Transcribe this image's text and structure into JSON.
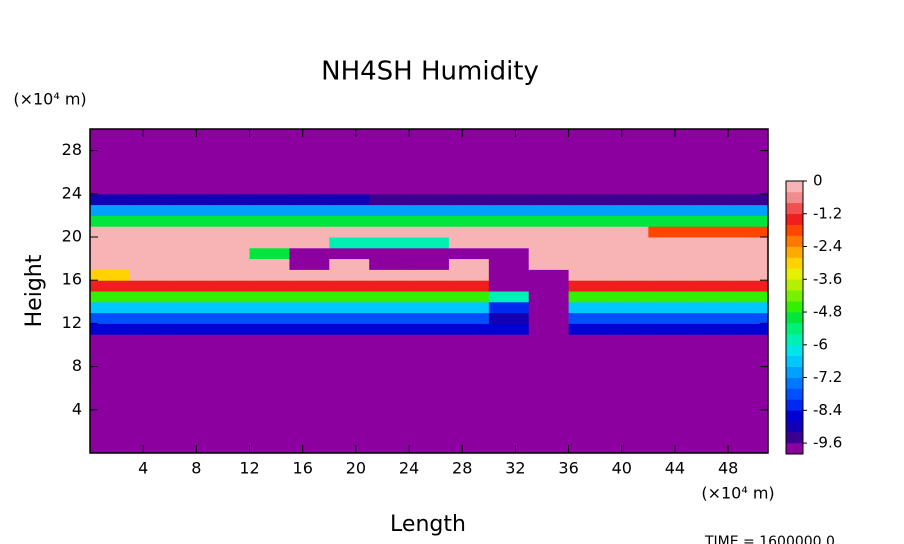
{
  "chart_data": {
    "type": "heatmap",
    "title": "NH4SH Humidity",
    "x_label": "Length",
    "y_label": "Height",
    "x_unit": "(×10⁴ m)",
    "y_unit": "(×10⁴ m)",
    "footer": "TIME = 1600000.0",
    "xlim": [
      0,
      51
    ],
    "ylim": [
      0,
      30
    ],
    "xticks": [
      4,
      8,
      12,
      16,
      20,
      24,
      28,
      32,
      36,
      40,
      44,
      48
    ],
    "yticks": [
      4,
      8,
      12,
      16,
      20,
      24,
      28
    ],
    "xbins": [
      0,
      3,
      6,
      9,
      12,
      15,
      18,
      21,
      24,
      27,
      30,
      33,
      36,
      39,
      42,
      45,
      48,
      51
    ],
    "ybins": [
      0,
      11,
      12,
      13,
      14,
      15,
      16,
      17,
      18,
      19,
      20,
      21,
      22,
      23,
      24,
      30
    ],
    "z": [
      [
        -9.8,
        -9.8,
        -9.8,
        -9.8,
        -9.8,
        -9.8,
        -9.8,
        -9.8,
        -9.8,
        -9.8,
        -9.8,
        -9.8,
        -9.8,
        -9.8,
        -9.8,
        -9.8,
        -9.8
      ],
      [
        -8.6,
        -8.6,
        -8.6,
        -8.6,
        -8.6,
        -8.6,
        -8.6,
        -8.6,
        -8.6,
        -8.6,
        -8.6,
        -9.8,
        -8.6,
        -8.6,
        -8.6,
        -8.6,
        -8.6
      ],
      [
        -7.8,
        -7.8,
        -7.8,
        -7.8,
        -7.8,
        -7.8,
        -7.8,
        -7.8,
        -7.8,
        -7.8,
        -9,
        -9.8,
        -7.8,
        -7.8,
        -7.8,
        -7.8,
        -7.8
      ],
      [
        -6.6,
        -6.6,
        -6.6,
        -6.6,
        -6.6,
        -6.6,
        -6.6,
        -6.6,
        -6.6,
        -6.6,
        -8.2,
        -9.8,
        -6.6,
        -6.6,
        -6.6,
        -6.6,
        -6.6
      ],
      [
        -4.4,
        -4.4,
        -4.4,
        -4.4,
        -4.4,
        -4.4,
        -4.4,
        -4.4,
        -4.4,
        -4.4,
        -6,
        -9.8,
        -4.4,
        -4.4,
        -4.4,
        -4.4,
        -4.4
      ],
      [
        -1.5,
        -1.5,
        -1.5,
        -1.5,
        -1.5,
        -1.5,
        -1.5,
        -1.5,
        -1.5,
        -1.5,
        -9.8,
        -9.8,
        -1.5,
        -1.5,
        -1.5,
        -1.5,
        -1.5
      ],
      [
        -3,
        -0.2,
        -0.2,
        -0.2,
        -0.2,
        -0.2,
        -0.2,
        -0.2,
        -0.2,
        -0.2,
        -9.8,
        -9.8,
        -0.2,
        -0.2,
        -0.2,
        -0.2,
        -0.2
      ],
      [
        -0.2,
        -0.2,
        -0.2,
        -0.2,
        -0.2,
        -9.8,
        -0.2,
        -9.8,
        -9.8,
        -0.2,
        -9.8,
        -0.2,
        -0.2,
        -0.2,
        -0.2,
        -0.2,
        -0.2
      ],
      [
        -0.2,
        -0.2,
        -0.2,
        -0.2,
        -5,
        -9.8,
        -9.8,
        -9.8,
        -9.8,
        -9.8,
        -9.8,
        -0.2,
        -0.2,
        -0.2,
        -0.2,
        -0.2,
        -0.2
      ],
      [
        -0.2,
        -0.2,
        -0.2,
        -0.2,
        -0.2,
        -0.2,
        -6,
        -6,
        -6,
        -0.2,
        -0.2,
        -0.2,
        -0.2,
        -0.2,
        -0.2,
        -0.2,
        -0.2
      ],
      [
        -0.2,
        -0.2,
        -0.2,
        -0.2,
        -0.2,
        -0.2,
        -0.2,
        -0.2,
        -0.2,
        -0.2,
        -0.2,
        -0.2,
        -0.2,
        -0.2,
        -2,
        -2,
        -2
      ],
      [
        -5,
        -5,
        -5,
        -5,
        -5,
        -5,
        -5,
        -5,
        -5,
        -5,
        -5,
        -5,
        -5,
        -5,
        -5,
        -5,
        -5
      ],
      [
        -7,
        -7,
        -7,
        -7,
        -7,
        -7,
        -7,
        -7,
        -7,
        -7,
        -7,
        -7,
        -7,
        -7,
        -7,
        -7,
        -7
      ],
      [
        -8.8,
        -8.8,
        -8.8,
        -8.8,
        -8.8,
        -8.8,
        -8.8,
        -9.4,
        -9.4,
        -9.4,
        -9.4,
        -9.4,
        -9.4,
        -9.4,
        -9.4,
        -9.4,
        -9.4
      ],
      [
        -9.8,
        -9.8,
        -9.8,
        -9.8,
        -9.8,
        -9.8,
        -9.8,
        -9.8,
        -9.8,
        -9.8,
        -9.8,
        -9.8,
        -9.8,
        -9.8,
        -9.8,
        -9.8,
        -9.8
      ]
    ],
    "clim": [
      -10,
      0
    ],
    "cticks": [
      0,
      -1.2,
      -2.4,
      -3.6,
      -4.8,
      -6,
      -7.2,
      -8.4,
      -9.6
    ],
    "colors": [
      "#8c00a0",
      "#3c0090",
      "#1400b4",
      "#0000d2",
      "#0028f0",
      "#0050ff",
      "#0078ff",
      "#00a0ff",
      "#00c8ff",
      "#00e6e6",
      "#00f0b4",
      "#00f078",
      "#00e63c",
      "#32f000",
      "#78f000",
      "#b4f000",
      "#e6f000",
      "#ffd200",
      "#ffaa00",
      "#ff7800",
      "#ff4600",
      "#f01e1e",
      "#f05050",
      "#f08c8c",
      "#f8b4b4"
    ]
  }
}
